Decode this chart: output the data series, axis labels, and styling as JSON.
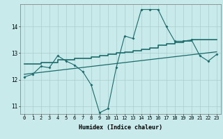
{
  "xlabel": "Humidex (Indice chaleur)",
  "bg_color": "#c8eaea",
  "line_color": "#1a6b6b",
  "grid_color": "#aacccc",
  "ylim": [
    10.7,
    14.85
  ],
  "xlim": [
    -0.5,
    23.5
  ],
  "yticks": [
    11,
    12,
    13,
    14
  ],
  "xticks": [
    0,
    1,
    2,
    3,
    4,
    5,
    6,
    7,
    8,
    9,
    10,
    11,
    12,
    13,
    14,
    15,
    16,
    17,
    18,
    19,
    20,
    21,
    22,
    23
  ],
  "zigzag_x": [
    0,
    1,
    2,
    3,
    4,
    5,
    6,
    7,
    8,
    9,
    10,
    11,
    12,
    13,
    14,
    15,
    16,
    17,
    18,
    19,
    20,
    21,
    22,
    23
  ],
  "zigzag_y": [
    12.1,
    12.2,
    12.5,
    12.45,
    12.9,
    12.7,
    12.55,
    12.3,
    11.8,
    10.75,
    10.9,
    12.45,
    13.65,
    13.55,
    14.65,
    14.65,
    14.65,
    14.0,
    13.45,
    13.45,
    13.5,
    12.9,
    12.7,
    12.95
  ],
  "middle_x": [
    0,
    1,
    2,
    3,
    4,
    5,
    6,
    7,
    8,
    9,
    10,
    11,
    12,
    13,
    14,
    15,
    16,
    17,
    18,
    19,
    20,
    21,
    22,
    23
  ],
  "middle_y": [
    12.6,
    12.6,
    12.65,
    12.65,
    12.75,
    12.75,
    12.8,
    12.8,
    12.85,
    12.9,
    12.95,
    13.0,
    13.05,
    13.1,
    13.15,
    13.2,
    13.3,
    13.35,
    13.4,
    13.45,
    13.5,
    13.5,
    13.5,
    13.5
  ],
  "trend_x": [
    0,
    23
  ],
  "trend_y": [
    12.2,
    13.05
  ]
}
